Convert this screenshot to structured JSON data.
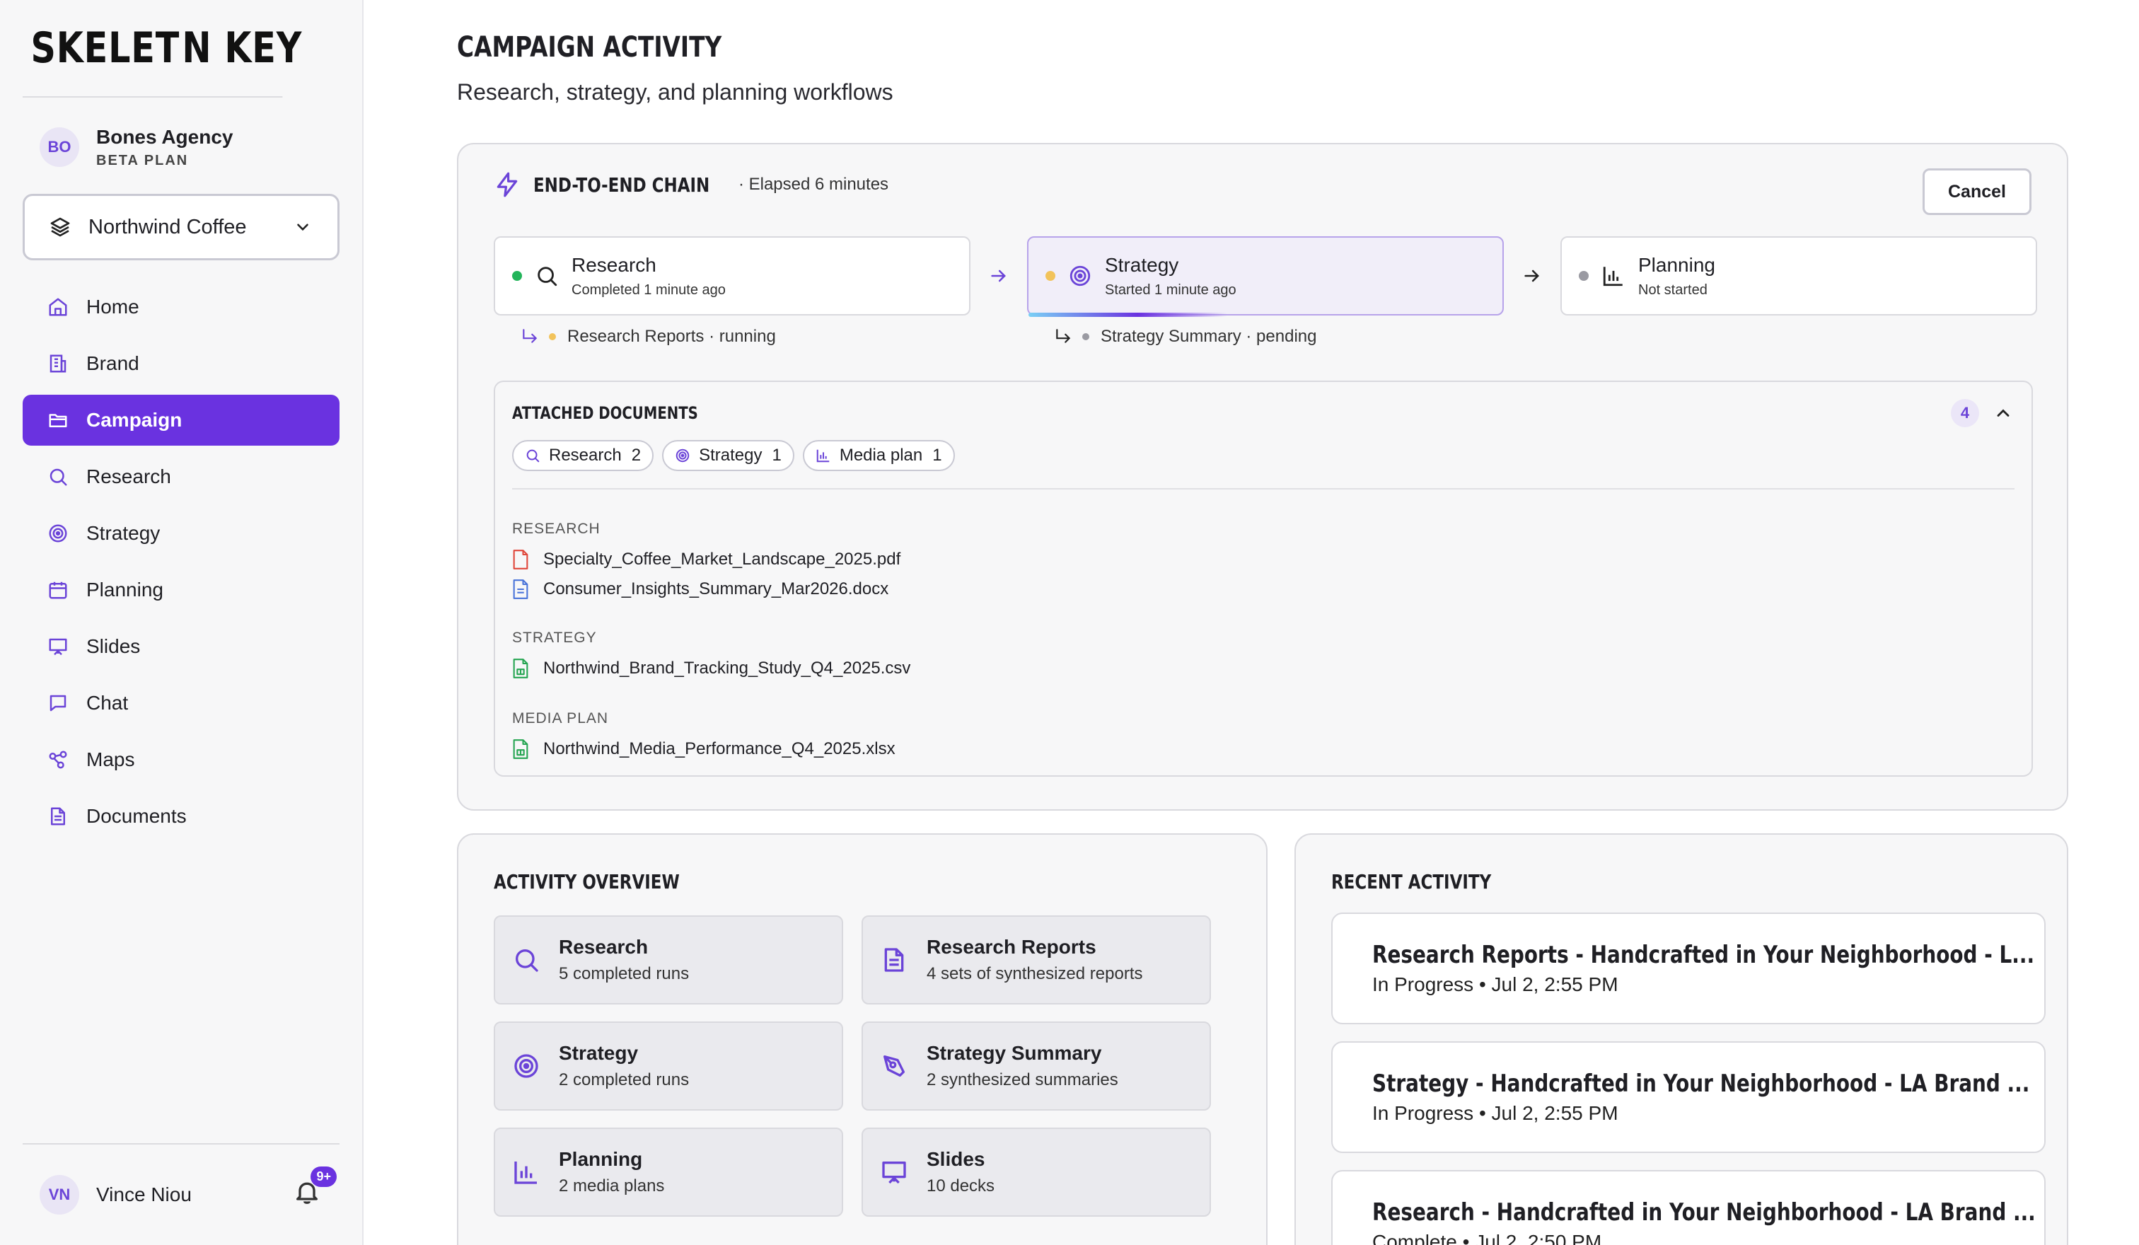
{
  "brand": {
    "logo_left": "SKELET",
    "logo_right": "N KEY"
  },
  "agency": {
    "initials": "BO",
    "name": "Bones Agency",
    "plan": "BETA PLAN"
  },
  "client_selector": {
    "value": "Northwind Coffee"
  },
  "nav": [
    {
      "label": "Home",
      "icon": "home-icon"
    },
    {
      "label": "Brand",
      "icon": "building-icon"
    },
    {
      "label": "Campaign",
      "icon": "folder-icon",
      "active": true
    },
    {
      "label": "Research",
      "icon": "search-icon"
    },
    {
      "label": "Strategy",
      "icon": "target-icon"
    },
    {
      "label": "Planning",
      "icon": "calendar-icon"
    },
    {
      "label": "Slides",
      "icon": "presentation-icon"
    },
    {
      "label": "Chat",
      "icon": "chat-icon"
    },
    {
      "label": "Maps",
      "icon": "map-nodes-icon"
    },
    {
      "label": "Documents",
      "icon": "document-icon"
    }
  ],
  "user": {
    "initials": "VN",
    "name": "Vince Niou",
    "notifications": "9+"
  },
  "page": {
    "title": "CAMPAIGN ACTIVITY",
    "subtitle": "Research, strategy, and planning workflows"
  },
  "chain": {
    "title": "END-TO-END CHAIN",
    "elapsed": "· Elapsed 6 minutes",
    "cancel_label": "Cancel",
    "steps": [
      {
        "name": "Research",
        "status": "Completed 1 minute ago",
        "dot_color": "#22b45a"
      },
      {
        "name": "Strategy",
        "status": "Started 1 minute ago",
        "dot_color": "#f2c35b"
      },
      {
        "name": "Planning",
        "status": "Not started",
        "dot_color": "#9a9aa2"
      }
    ],
    "sub_status": [
      {
        "text": "Research Reports · running",
        "dot_color": "#f2c35b"
      },
      {
        "text": "Strategy Summary · pending",
        "dot_color": "#9a9aa2"
      }
    ],
    "strategy_progress": 0.42
  },
  "documents": {
    "title": "ATTACHED DOCUMENTS",
    "count": "4",
    "chips": [
      {
        "label": "Research",
        "count": "2"
      },
      {
        "label": "Strategy",
        "count": "1"
      },
      {
        "label": "Media plan",
        "count": "1"
      }
    ],
    "groups": [
      {
        "label": "RESEARCH",
        "files": [
          {
            "name": "Specialty_Coffee_Market_Landscape_2025.pdf",
            "type": "pdf"
          },
          {
            "name": "Consumer_Insights_Summary_Mar2026.docx",
            "type": "docx"
          }
        ]
      },
      {
        "label": "STRATEGY",
        "files": [
          {
            "name": "Northwind_Brand_Tracking_Study_Q4_2025.csv",
            "type": "csv"
          }
        ]
      },
      {
        "label": "MEDIA PLAN",
        "files": [
          {
            "name": "Northwind_Media_Performance_Q4_2025.xlsx",
            "type": "xlsx"
          }
        ]
      }
    ]
  },
  "overview": {
    "title": "ACTIVITY OVERVIEW",
    "tiles": [
      {
        "name": "Research",
        "desc": "5 completed runs"
      },
      {
        "name": "Research Reports",
        "desc": "4 sets of synthesized reports"
      },
      {
        "name": "Strategy",
        "desc": "2 completed runs"
      },
      {
        "name": "Strategy Summary",
        "desc": "2 synthesized summaries"
      },
      {
        "name": "Planning",
        "desc": "2 media plans"
      },
      {
        "name": "Slides",
        "desc": "10 decks"
      }
    ]
  },
  "recent": {
    "title": "RECENT ACTIVITY",
    "items": [
      {
        "title": "Research Reports - Handcrafted in Your Neighborhood - L...",
        "meta": "In Progress • Jul 2, 2:55 PM",
        "dot_color": "#f2c35b"
      },
      {
        "title": "Strategy - Handcrafted in Your Neighborhood - LA Brand ...",
        "meta": "In Progress • Jul 2, 2:55 PM",
        "dot_color": "#f2c35b"
      },
      {
        "title": "Research - Handcrafted in Your Neighborhood - LA Brand ...",
        "meta": "Complete • Jul 2, 2:50 PM",
        "dot_color": "#22b45a"
      }
    ]
  }
}
